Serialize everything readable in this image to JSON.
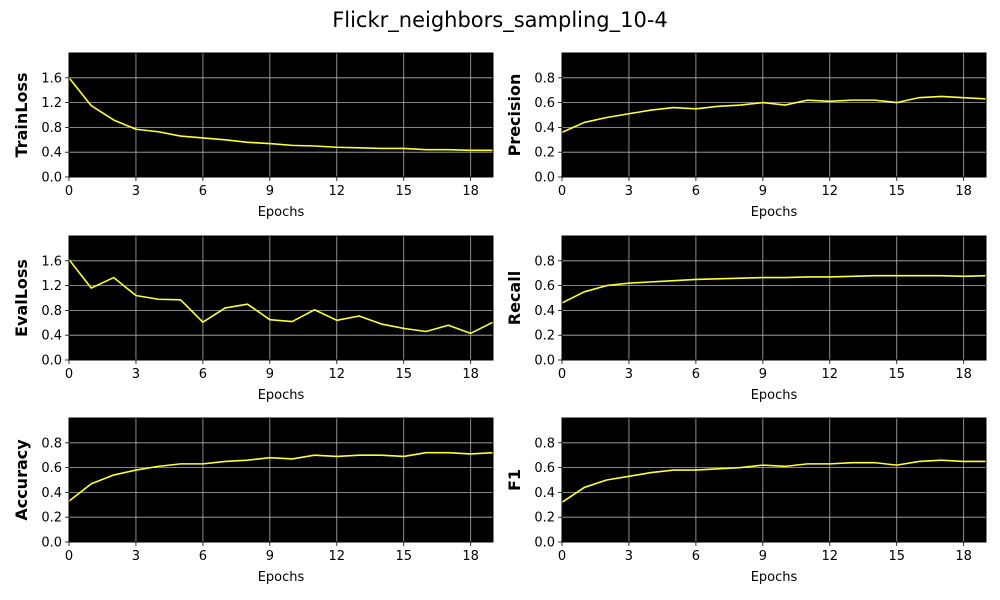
{
  "figure": {
    "title": "Flickr_neighbors_sampling_10-4"
  },
  "style": {
    "plot_bg": "#000000",
    "line_color": "#ffff33",
    "grid_color": "#b0b0b0"
  },
  "chart_data": [
    {
      "type": "line",
      "ylabel": "TrainLoss",
      "xlabel": "Epochs",
      "xlim": [
        0,
        19
      ],
      "ylim": [
        0,
        2.0
      ],
      "xticks": [
        0,
        3,
        6,
        9,
        12,
        15,
        18
      ],
      "xtick_labels": [
        "0",
        "3",
        "6",
        "9",
        "12",
        "15",
        "18"
      ],
      "yticks": [
        0,
        0.4,
        0.8,
        1.2,
        1.6
      ],
      "ytick_labels": [
        "0.0",
        "0.4",
        "0.8",
        "1.2",
        "1.6"
      ],
      "grid": true,
      "series": [
        {
          "x": [
            0,
            1,
            2,
            3,
            4,
            5,
            6,
            7,
            8,
            9,
            10,
            11,
            12,
            13,
            14,
            15,
            16,
            17,
            18,
            19
          ],
          "values": [
            1.6,
            1.15,
            0.92,
            0.77,
            0.73,
            0.66,
            0.63,
            0.6,
            0.56,
            0.54,
            0.51,
            0.5,
            0.48,
            0.47,
            0.46,
            0.46,
            0.44,
            0.44,
            0.43,
            0.43
          ]
        }
      ]
    },
    {
      "type": "line",
      "ylabel": "Precision",
      "xlabel": "Epochs",
      "xlim": [
        0,
        19
      ],
      "ylim": [
        0,
        1.0
      ],
      "xticks": [
        0,
        3,
        6,
        9,
        12,
        15,
        18
      ],
      "xtick_labels": [
        "0",
        "3",
        "6",
        "9",
        "12",
        "15",
        "18"
      ],
      "yticks": [
        0,
        0.2,
        0.4,
        0.6,
        0.8
      ],
      "ytick_labels": [
        "0.0",
        "0.2",
        "0.4",
        "0.6",
        "0.8"
      ],
      "grid": true,
      "series": [
        {
          "x": [
            0,
            1,
            2,
            3,
            4,
            5,
            6,
            7,
            8,
            9,
            10,
            11,
            12,
            13,
            14,
            15,
            16,
            17,
            18,
            19
          ],
          "values": [
            0.36,
            0.44,
            0.48,
            0.51,
            0.54,
            0.56,
            0.55,
            0.57,
            0.58,
            0.6,
            0.58,
            0.62,
            0.61,
            0.62,
            0.62,
            0.6,
            0.64,
            0.65,
            0.64,
            0.63
          ]
        }
      ]
    },
    {
      "type": "line",
      "ylabel": "EvalLoss",
      "xlabel": "Epochs",
      "xlim": [
        0,
        19
      ],
      "ylim": [
        0,
        2.0
      ],
      "xticks": [
        0,
        3,
        6,
        9,
        12,
        15,
        18
      ],
      "xtick_labels": [
        "0",
        "3",
        "6",
        "9",
        "12",
        "15",
        "18"
      ],
      "yticks": [
        0,
        0.4,
        0.8,
        1.2,
        1.6
      ],
      "ytick_labels": [
        "0.0",
        "0.4",
        "0.8",
        "1.2",
        "1.6"
      ],
      "grid": true,
      "series": [
        {
          "x": [
            0,
            1,
            2,
            3,
            4,
            5,
            6,
            7,
            8,
            9,
            10,
            11,
            12,
            13,
            14,
            15,
            16,
            17,
            18,
            19
          ],
          "values": [
            1.62,
            1.16,
            1.33,
            1.04,
            0.98,
            0.97,
            0.61,
            0.84,
            0.9,
            0.65,
            0.62,
            0.81,
            0.64,
            0.71,
            0.58,
            0.51,
            0.46,
            0.56,
            0.43,
            0.61
          ]
        }
      ]
    },
    {
      "type": "line",
      "ylabel": "Recall",
      "xlabel": "Epochs",
      "xlim": [
        0,
        19
      ],
      "ylim": [
        0,
        1.0
      ],
      "xticks": [
        0,
        3,
        6,
        9,
        12,
        15,
        18
      ],
      "xtick_labels": [
        "0",
        "3",
        "6",
        "9",
        "12",
        "15",
        "18"
      ],
      "yticks": [
        0,
        0.2,
        0.4,
        0.6,
        0.8
      ],
      "ytick_labels": [
        "0.0",
        "0.2",
        "0.4",
        "0.6",
        "0.8"
      ],
      "grid": true,
      "series": [
        {
          "x": [
            0,
            1,
            2,
            3,
            4,
            5,
            6,
            7,
            8,
            9,
            10,
            11,
            12,
            13,
            14,
            15,
            16,
            17,
            18,
            19
          ],
          "values": [
            0.46,
            0.55,
            0.6,
            0.62,
            0.63,
            0.64,
            0.65,
            0.655,
            0.66,
            0.665,
            0.665,
            0.67,
            0.67,
            0.675,
            0.68,
            0.68,
            0.68,
            0.68,
            0.675,
            0.68
          ]
        }
      ]
    },
    {
      "type": "line",
      "ylabel": "Accuracy",
      "xlabel": "Epochs",
      "xlim": [
        0,
        19
      ],
      "ylim": [
        0,
        1.0
      ],
      "xticks": [
        0,
        3,
        6,
        9,
        12,
        15,
        18
      ],
      "xtick_labels": [
        "0",
        "3",
        "6",
        "9",
        "12",
        "15",
        "18"
      ],
      "yticks": [
        0,
        0.2,
        0.4,
        0.6,
        0.8
      ],
      "ytick_labels": [
        "0.0",
        "0.2",
        "0.4",
        "0.6",
        "0.8"
      ],
      "grid": true,
      "series": [
        {
          "x": [
            0,
            1,
            2,
            3,
            4,
            5,
            6,
            7,
            8,
            9,
            10,
            11,
            12,
            13,
            14,
            15,
            16,
            17,
            18,
            19
          ],
          "values": [
            0.33,
            0.47,
            0.54,
            0.58,
            0.61,
            0.63,
            0.63,
            0.65,
            0.66,
            0.68,
            0.67,
            0.7,
            0.69,
            0.7,
            0.7,
            0.69,
            0.72,
            0.72,
            0.71,
            0.72
          ]
        }
      ]
    },
    {
      "type": "line",
      "ylabel": "F1",
      "xlabel": "Epochs",
      "xlim": [
        0,
        19
      ],
      "ylim": [
        0,
        1.0
      ],
      "xticks": [
        0,
        3,
        6,
        9,
        12,
        15,
        18
      ],
      "xtick_labels": [
        "0",
        "3",
        "6",
        "9",
        "12",
        "15",
        "18"
      ],
      "yticks": [
        0,
        0.2,
        0.4,
        0.6,
        0.8
      ],
      "ytick_labels": [
        "0.0",
        "0.2",
        "0.4",
        "0.6",
        "0.8"
      ],
      "grid": true,
      "series": [
        {
          "x": [
            0,
            1,
            2,
            3,
            4,
            5,
            6,
            7,
            8,
            9,
            10,
            11,
            12,
            13,
            14,
            15,
            16,
            17,
            18,
            19
          ],
          "values": [
            0.32,
            0.44,
            0.5,
            0.53,
            0.56,
            0.58,
            0.58,
            0.59,
            0.6,
            0.62,
            0.61,
            0.63,
            0.63,
            0.64,
            0.64,
            0.62,
            0.65,
            0.66,
            0.65,
            0.65
          ]
        }
      ]
    }
  ]
}
